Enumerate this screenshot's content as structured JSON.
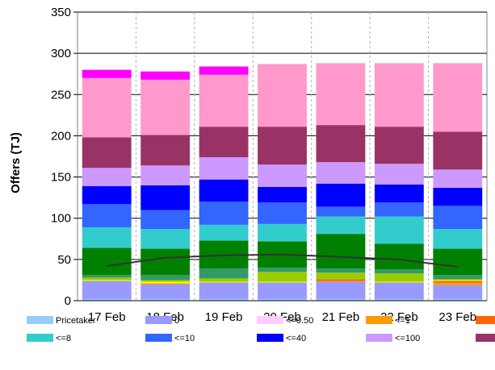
{
  "chart_data": {
    "type": "bar",
    "stacked": true,
    "ylabel": "Offers (TJ)",
    "ylim": [
      0,
      350
    ],
    "yticks": [
      0,
      50,
      100,
      150,
      200,
      250,
      300,
      350
    ],
    "categories": [
      "17 Feb",
      "18 Feb",
      "19 Feb",
      "20 Feb",
      "21 Feb",
      "22 Feb",
      "23 Feb"
    ],
    "grid": {
      "horizontal": true,
      "vertical_dashed": true
    },
    "series": [
      {
        "name": "Pricetaker",
        "color": "#99ccff",
        "values": [
          2,
          2,
          2,
          2,
          2,
          2,
          2
        ]
      },
      {
        "name": "0",
        "color": "#9999ff",
        "values": [
          22,
          18,
          20,
          20,
          21,
          20,
          17
        ]
      },
      {
        "name": "<=0.50",
        "color": "#ffccff",
        "values": [
          0,
          0,
          0,
          0,
          0,
          0,
          0
        ]
      },
      {
        "name": "<=1",
        "color": "#ff9900",
        "values": [
          0,
          1,
          0,
          0,
          1,
          0,
          3
        ]
      },
      {
        "name": "",
        "color": "#ff6600",
        "values": [
          0,
          0,
          0,
          0,
          2,
          0,
          2
        ]
      },
      {
        "name": "",
        "color": "#ffff00",
        "values": [
          1,
          2,
          1,
          1,
          0,
          1,
          1
        ]
      },
      {
        "name": "",
        "color": "#99cc00",
        "values": [
          3,
          2,
          4,
          12,
          8,
          10,
          1
        ]
      },
      {
        "name": "",
        "color": "#339966",
        "values": [
          3,
          6,
          12,
          5,
          5,
          5,
          5
        ]
      },
      {
        "name": "",
        "color": "#008000",
        "values": [
          33,
          32,
          34,
          32,
          42,
          31,
          32
        ]
      },
      {
        "name": "<=8",
        "color": "#33cccc",
        "values": [
          25,
          24,
          19,
          21,
          21,
          33,
          24
        ]
      },
      {
        "name": "<=10",
        "color": "#3366ff",
        "values": [
          28,
          23,
          28,
          26,
          12,
          17,
          28
        ]
      },
      {
        "name": "<=40",
        "color": "#0000ff",
        "values": [
          22,
          30,
          27,
          19,
          28,
          22,
          22
        ]
      },
      {
        "name": "<=100",
        "color": "#cc99ff",
        "values": [
          22,
          24,
          27,
          27,
          26,
          25,
          22
        ]
      },
      {
        "name": "",
        "color": "#993366",
        "values": [
          37,
          37,
          37,
          46,
          45,
          45,
          46
        ]
      },
      {
        "name": "",
        "color": "#ff99cc",
        "values": [
          72,
          67,
          63,
          76,
          75,
          77,
          83
        ]
      },
      {
        "name": "",
        "color": "#ff00ff",
        "values": [
          10,
          10,
          10,
          0,
          0,
          0,
          0
        ]
      }
    ],
    "line": {
      "name": "",
      "color": "#333333",
      "values": [
        42,
        52,
        55,
        56,
        53,
        50,
        41
      ]
    },
    "legend": {
      "position": "bottom",
      "entries": [
        {
          "label": "Pricetaker",
          "color": "#99ccff"
        },
        {
          "label": "0",
          "color": "#9999ff"
        },
        {
          "label": "<=0.50",
          "color": "#ffccff"
        },
        {
          "label": "<=1",
          "color": "#ff9900"
        },
        {
          "label": "",
          "color": "#ff6600"
        },
        {
          "label": "<=8",
          "color": "#33cccc"
        },
        {
          "label": "<=10",
          "color": "#3366ff"
        },
        {
          "label": "<=40",
          "color": "#0000ff"
        },
        {
          "label": "<=100",
          "color": "#cc99ff"
        },
        {
          "label": "",
          "color": "#993366"
        }
      ]
    }
  }
}
